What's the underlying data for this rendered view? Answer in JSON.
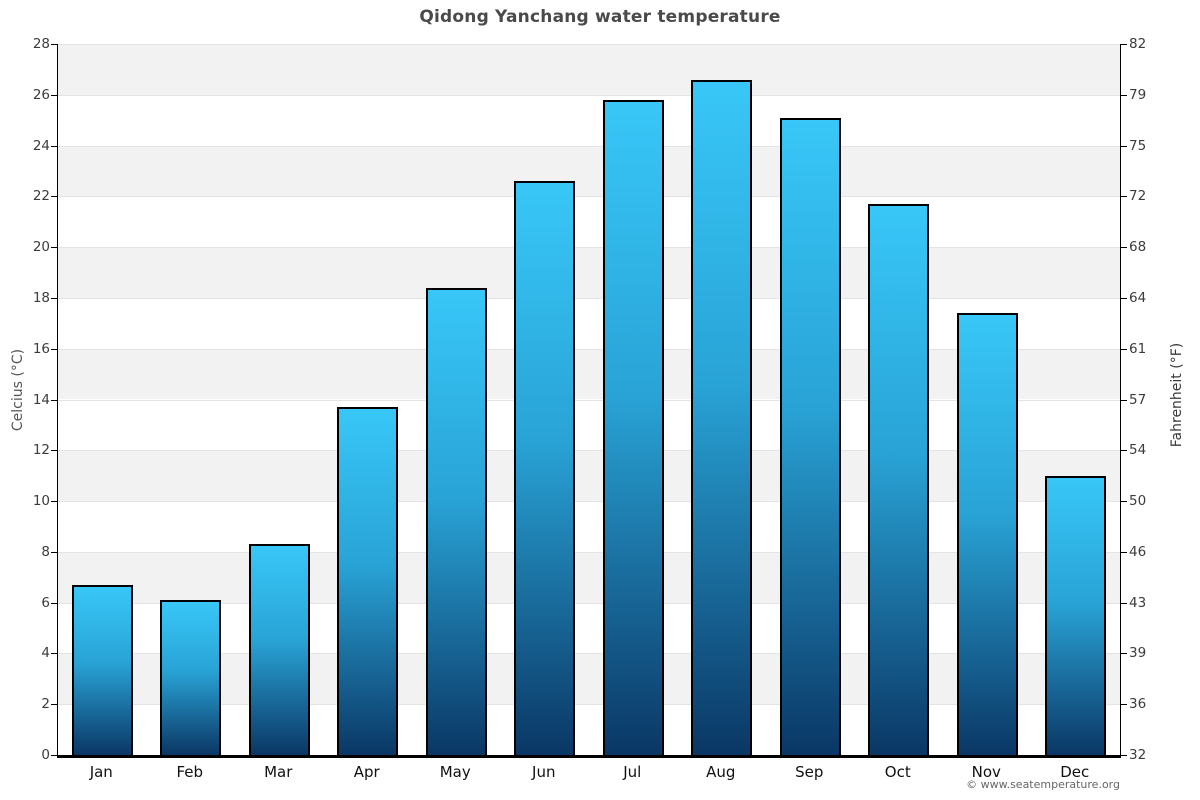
{
  "title": "Qidong Yanchang water temperature",
  "footer": "© www.seatemperature.org",
  "axes": {
    "left_title": "Celcius (°C)",
    "right_title": "Fahrenheit (°F)"
  },
  "chart_data": {
    "type": "bar",
    "title": "Qidong Yanchang water temperature",
    "categories": [
      "Jan",
      "Feb",
      "Mar",
      "Apr",
      "May",
      "Jun",
      "Jul",
      "Aug",
      "Sep",
      "Oct",
      "Nov",
      "Dec"
    ],
    "values": [
      6.7,
      6.1,
      8.3,
      13.7,
      18.4,
      22.6,
      25.8,
      26.6,
      25.1,
      21.7,
      17.4,
      11.0
    ],
    "xlabel": "",
    "ylabel": "Celcius (°C)",
    "ylabel_right": "Fahrenheit (°F)",
    "ylim": [
      0,
      28
    ],
    "celsius_ticks": [
      28,
      26,
      24,
      22,
      20,
      18,
      16,
      14,
      12,
      10,
      8,
      6,
      4,
      2,
      0
    ],
    "fahrenheit_tick_labels": [
      "82",
      "79",
      "75",
      "72",
      "68",
      "64",
      "61",
      "57",
      "54",
      "50",
      "46",
      "43",
      "39",
      "36",
      "32"
    ],
    "grid": "alternating-horizontal-bands",
    "legend": "none"
  },
  "colors": {
    "bar_top": "#38c7f8",
    "bar_mid": "#29a3d6",
    "bar_bottom": "#0a3765",
    "bar_border": "#000000",
    "band_gray": "#f2f2f2",
    "band_white": "#ffffff",
    "gridline": "#e4e4e4",
    "axis_line": "#000000",
    "title_color": "#4a4a4a",
    "tick_label_color": "#3c3c3c",
    "footer_color": "#666666"
  }
}
